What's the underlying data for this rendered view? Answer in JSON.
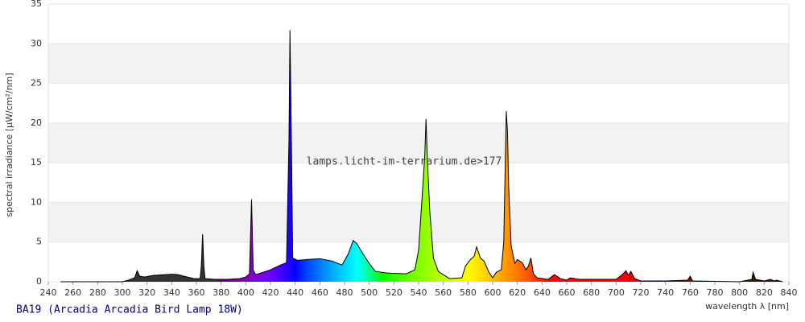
{
  "chart_data": {
    "type": "area",
    "title": "BA19 (Arcadia Arcadia Bird Lamp 18W)",
    "watermark": "lamps.licht-im-terrarium.de>177",
    "x_label": "wavelength λ [nm]",
    "y_label": "spectral irradiance [µW/cm²/nm]",
    "x": [
      250,
      300,
      305,
      310,
      312,
      314,
      318,
      325,
      335,
      340,
      345,
      350,
      358,
      363,
      364,
      365,
      366,
      367,
      375,
      385,
      395,
      400,
      403,
      404.7,
      406,
      408,
      412,
      420,
      428,
      433,
      435,
      435.8,
      437,
      438,
      442,
      450,
      460,
      470,
      478,
      483,
      487,
      490,
      495,
      500,
      505,
      515,
      530,
      537,
      540,
      543,
      545,
      546,
      547,
      549,
      552,
      556,
      565,
      575,
      578,
      582,
      585,
      587,
      590,
      593,
      597,
      600,
      603,
      607,
      609,
      611,
      612,
      613,
      615,
      618,
      620,
      624,
      627,
      629,
      631,
      633,
      636,
      645,
      650,
      655,
      660,
      663,
      670,
      680,
      690,
      700,
      705,
      708,
      710,
      712,
      715,
      720,
      740,
      758,
      760,
      762,
      800,
      810,
      811,
      813,
      820,
      825,
      828,
      830,
      835
    ],
    "y": [
      0,
      0,
      0.2,
      0.5,
      1.4,
      0.7,
      0.6,
      0.8,
      0.9,
      0.95,
      0.9,
      0.7,
      0.4,
      0.4,
      2,
      6,
      2,
      0.4,
      0.3,
      0.3,
      0.4,
      0.6,
      1,
      10.4,
      1.5,
      0.9,
      1.1,
      1.5,
      2.1,
      2.4,
      18,
      31.7,
      17,
      3,
      2.7,
      2.8,
      2.9,
      2.6,
      2.1,
      3.5,
      5.2,
      4.8,
      3.5,
      2.3,
      1.3,
      1.1,
      1,
      1.5,
      4,
      11,
      16,
      20.5,
      16,
      9,
      3,
      1.3,
      0.4,
      0.5,
      2,
      2.8,
      3.2,
      4.4,
      3,
      2.6,
      1.2,
      0.5,
      1.2,
      1.5,
      5,
      21.5,
      19,
      12,
      4.5,
      2.3,
      2.8,
      2.4,
      1.5,
      2,
      3,
      1,
      0.5,
      0.3,
      0.9,
      0.4,
      0.2,
      0.5,
      0.3,
      0.3,
      0.3,
      0.3,
      0.9,
      1.4,
      0.8,
      1.3,
      0.4,
      0.1,
      0.1,
      0.2,
      0.7,
      0.1,
      0,
      0.3,
      1.2,
      0.3,
      0.1,
      0.3,
      0.1,
      0.2,
      0
    ],
    "xlim": [
      240,
      840
    ],
    "ylim": [
      0,
      35
    ],
    "xticks": [
      240,
      260,
      280,
      300,
      320,
      340,
      360,
      380,
      400,
      420,
      440,
      460,
      480,
      500,
      520,
      540,
      560,
      580,
      600,
      620,
      640,
      660,
      680,
      700,
      720,
      740,
      760,
      780,
      800,
      820,
      840
    ],
    "yticks": [
      0,
      5,
      10,
      15,
      20,
      25,
      30,
      35
    ],
    "grid": true,
    "outline_color": "#000000"
  }
}
